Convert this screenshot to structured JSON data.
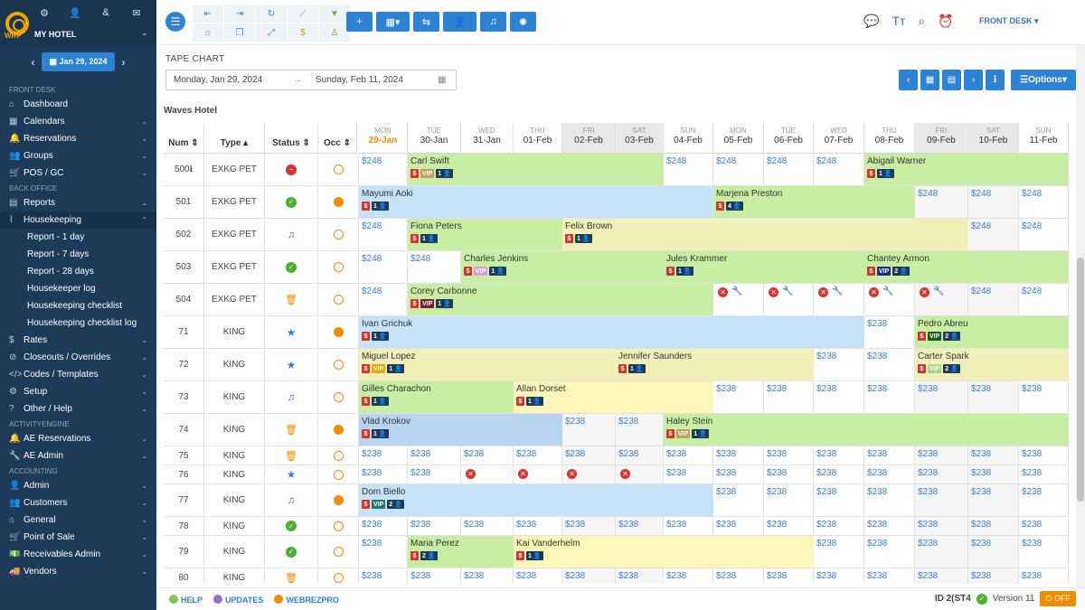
{
  "sidebar": {
    "logo_text": "WRP",
    "hotel": "MY HOTEL",
    "date": "Jan 29, 2024",
    "menu": [
      {
        "type": "sec",
        "label": "FRONT DESK"
      },
      {
        "type": "item",
        "label": "Dashboard",
        "icon": "home-icon",
        "chev": false
      },
      {
        "type": "item",
        "label": "Calendars",
        "icon": "calendar-icon",
        "chev": true
      },
      {
        "type": "item",
        "label": "Reservations",
        "icon": "bell-icon",
        "chev": true
      },
      {
        "type": "item",
        "label": "Groups",
        "icon": "group-icon",
        "chev": true
      },
      {
        "type": "item",
        "label": "POS / GC",
        "icon": "cart-icon",
        "chev": true
      },
      {
        "type": "sec",
        "label": "BACK OFFICE"
      },
      {
        "type": "item",
        "label": "Reports",
        "icon": "chart-icon",
        "chev": true
      },
      {
        "type": "item",
        "label": "Housekeeping",
        "icon": "broom-icon",
        "chev": true,
        "active": true
      },
      {
        "type": "sub",
        "label": "Report - 1 day"
      },
      {
        "type": "sub",
        "label": "Report - 7 days"
      },
      {
        "type": "sub",
        "label": "Report - 28 days"
      },
      {
        "type": "sub",
        "label": "Housekeeper log"
      },
      {
        "type": "sub",
        "label": "Housekeeping checklist"
      },
      {
        "type": "sub",
        "label": "Housekeeping checklist log"
      },
      {
        "type": "item",
        "label": "Rates",
        "icon": "dollar-icon",
        "chev": true
      },
      {
        "type": "item",
        "label": "Closeouts / Overrides",
        "icon": "block-icon",
        "chev": true
      },
      {
        "type": "item",
        "label": "Codes / Templates",
        "icon": "code-icon",
        "chev": true
      },
      {
        "type": "item",
        "label": "Setup",
        "icon": "gear-icon",
        "chev": true
      },
      {
        "type": "item",
        "label": "Other / Help",
        "icon": "help-icon",
        "chev": true
      },
      {
        "type": "sec",
        "label": "ACTIVITYENGINE"
      },
      {
        "type": "item",
        "label": "AE Reservations",
        "icon": "bell-icon",
        "chev": true
      },
      {
        "type": "item",
        "label": "AE Admin",
        "icon": "wrench-icon",
        "chev": true
      },
      {
        "type": "sec",
        "label": "ACCOUNTING"
      },
      {
        "type": "item",
        "label": "Admin",
        "icon": "person-icon",
        "chev": true
      },
      {
        "type": "item",
        "label": "Customers",
        "icon": "group-icon",
        "chev": true
      },
      {
        "type": "item",
        "label": "General",
        "icon": "bank-icon",
        "chev": true
      },
      {
        "type": "item",
        "label": "Point of Sale",
        "icon": "cart-icon",
        "chev": true
      },
      {
        "type": "item",
        "label": "Receivables Admin",
        "icon": "money-icon",
        "chev": true
      },
      {
        "type": "item",
        "label": "Vendors",
        "icon": "truck-icon",
        "chev": true
      }
    ]
  },
  "topbar": {
    "front_desk": "FRONT DESK"
  },
  "tape": {
    "title": "TAPE CHART",
    "from": "Monday, Jan 29, 2024",
    "to": "Sunday, Feb 11, 2024",
    "options": "Options",
    "hotel": "Waves Hotel"
  },
  "headers": {
    "num": "Num",
    "type": "Type",
    "status": "Status",
    "occ": "Occ"
  },
  "days": [
    {
      "dow": "MON",
      "date": "29-Jan",
      "today": true
    },
    {
      "dow": "TUE",
      "date": "30-Jan"
    },
    {
      "dow": "WED",
      "date": "31-Jan"
    },
    {
      "dow": "THU",
      "date": "01-Feb"
    },
    {
      "dow": "FRI",
      "date": "02-Feb",
      "we": true
    },
    {
      "dow": "SAT",
      "date": "03-Feb",
      "we": true
    },
    {
      "dow": "SUN",
      "date": "04-Feb"
    },
    {
      "dow": "MON",
      "date": "05-Feb"
    },
    {
      "dow": "TUE",
      "date": "06-Feb"
    },
    {
      "dow": "WED",
      "date": "07-Feb"
    },
    {
      "dow": "THU",
      "date": "08-Feb"
    },
    {
      "dow": "FRI",
      "date": "09-Feb",
      "we": true
    },
    {
      "dow": "SAT",
      "date": "10-Feb",
      "we": true
    },
    {
      "dow": "SUN",
      "date": "11-Feb"
    }
  ],
  "rooms": [
    {
      "num": "500",
      "info": true,
      "type": "EXKG PET",
      "status": "red",
      "occ": "empty",
      "price": "$248",
      "bookings": [
        {
          "name": "Carl Swift",
          "start": 1,
          "len": 5,
          "color": "#c7eea3",
          "vip": true,
          "pax": "1"
        },
        {
          "name": "Abigail Warner",
          "start": 10,
          "len": 4,
          "color": "#c7eea3",
          "pax": "1"
        }
      ]
    },
    {
      "num": "501",
      "type": "EXKG PET",
      "status": "grn",
      "occ": "full",
      "price": "$248",
      "bookings": [
        {
          "name": "Mayumi Aoki",
          "start": 0,
          "len": 7,
          "color": "#c6e2f7",
          "pax": "1"
        },
        {
          "name": "Marjena Preston",
          "start": 7,
          "len": 4,
          "color": "#c7eea3",
          "pax": "4"
        }
      ]
    },
    {
      "num": "502",
      "type": "EXKG PET",
      "status": "music",
      "occ": "empty",
      "price": "$248",
      "bookings": [
        {
          "name": "Fiona Peters",
          "start": 1,
          "len": 3,
          "color": "#c7eea3",
          "pax": "1"
        },
        {
          "name": "Felix Brown",
          "start": 4,
          "len": 8,
          "color": "#f3efb9",
          "pax": "1"
        }
      ]
    },
    {
      "num": "503",
      "type": "EXKG PET",
      "status": "grn",
      "occ": "empty",
      "price": "$248",
      "bookings": [
        {
          "name": "Charles Jenkins",
          "start": 2,
          "len": 4,
          "color": "#c7eea3",
          "vip": true,
          "vipc": "#d9a0e0",
          "pax": "1"
        },
        {
          "name": "Jules Krammer",
          "start": 6,
          "len": 4,
          "color": "#c7eea3",
          "pax": "1"
        },
        {
          "name": "Chantey Armon",
          "start": 10,
          "len": 4,
          "color": "#c7eea3",
          "vip": true,
          "vipc": "#1f2a8a",
          "pax": "2"
        }
      ]
    },
    {
      "num": "504",
      "type": "EXKG PET",
      "status": "trash",
      "occ": "empty",
      "price": "$248",
      "bookings": [
        {
          "name": "Corey Carbonne",
          "start": 1,
          "len": 6,
          "color": "#c7eea3",
          "vip": true,
          "vipc": "#7a1f3a",
          "pax": "1"
        }
      ],
      "blocked": [
        7,
        8,
        9,
        10,
        11
      ]
    },
    {
      "num": "71",
      "type": "KING",
      "status": "star",
      "occ": "full",
      "price": "$238",
      "bookings": [
        {
          "name": "Ivan Grichuk",
          "start": 0,
          "len": 10,
          "color": "#c6e2f7",
          "pax": "1"
        },
        {
          "name": "Pedro Abreu",
          "start": 11,
          "len": 3,
          "color": "#c7eea3",
          "vip": true,
          "vipc": "#1b5e20",
          "pax": "2"
        }
      ]
    },
    {
      "num": "72",
      "type": "KING",
      "status": "star",
      "occ": "empty",
      "price": "$238",
      "bookings": [
        {
          "name": "Miguel Lopez",
          "start": 0,
          "len": 5,
          "color": "#f3efb9",
          "vip": true,
          "vipc": "#f0a500",
          "pax": "1"
        },
        {
          "name": "Jennifer Saunders",
          "start": 5,
          "len": 4,
          "color": "#f3efb9",
          "pax": "1"
        },
        {
          "name": "Carter Spark",
          "start": 11,
          "len": 3,
          "color": "#f3efb9",
          "vip": true,
          "vipc": "#a5d98a",
          "pax": "2"
        }
      ]
    },
    {
      "num": "73",
      "type": "KING",
      "status": "music",
      "occ": "empty",
      "price": "$238",
      "bookings": [
        {
          "name": "Gilles Charachon",
          "start": 0,
          "len": 3,
          "color": "#c7eea3",
          "pax": "1"
        },
        {
          "name": "Allan Dorset",
          "start": 3,
          "len": 4,
          "color": "#fdf6b9",
          "pax": "1"
        }
      ]
    },
    {
      "num": "74",
      "type": "KING",
      "status": "trash",
      "occ": "full",
      "price": "$238",
      "bookings": [
        {
          "name": "Vlad Krokov",
          "start": 0,
          "len": 4,
          "color": "#b7d5f1",
          "pax": "1"
        },
        {
          "name": "Haley Stein",
          "start": 6,
          "len": 8,
          "color": "#c7eea3",
          "vip": true,
          "vipc": "#c0a15b",
          "pax": "1"
        }
      ]
    },
    {
      "num": "75",
      "type": "KING",
      "status": "trash",
      "occ": "empty",
      "price": "$238",
      "bookings": [],
      "short": true
    },
    {
      "num": "76",
      "type": "KING",
      "status": "star",
      "occ": "empty",
      "price": "$238",
      "bookings": [],
      "short": true,
      "xs": [
        2,
        3,
        4,
        5
      ]
    },
    {
      "num": "77",
      "type": "KING",
      "status": "music",
      "occ": "full",
      "price": "$238",
      "bookings": [
        {
          "name": "Dom Biello",
          "start": 0,
          "len": 7,
          "color": "#c6e2f7",
          "vip": true,
          "vipc": "#1f7a6a",
          "pax": "2"
        }
      ]
    },
    {
      "num": "78",
      "type": "KING",
      "status": "grn",
      "occ": "empty",
      "price": "$238",
      "bookings": [],
      "short": true
    },
    {
      "num": "79",
      "type": "KING",
      "status": "grn",
      "occ": "empty",
      "price": "$238",
      "bookings": [
        {
          "name": "Maria Perez",
          "start": 1,
          "len": 2,
          "color": "#c7eea3",
          "pax": "2"
        },
        {
          "name": "Kai Vanderhelm",
          "start": 3,
          "len": 6,
          "color": "#fdf6b9",
          "pax": "1"
        }
      ]
    },
    {
      "num": "80",
      "type": "KING",
      "status": "trash",
      "occ": "empty",
      "price": "$238",
      "bookings": [],
      "short": true
    }
  ],
  "footer": {
    "help": "HELP",
    "updates": "UPDATES",
    "webrez": "WEBREZPRO",
    "id": "ID 2(ST4",
    "version": "Version 11",
    "off": "OFF"
  }
}
